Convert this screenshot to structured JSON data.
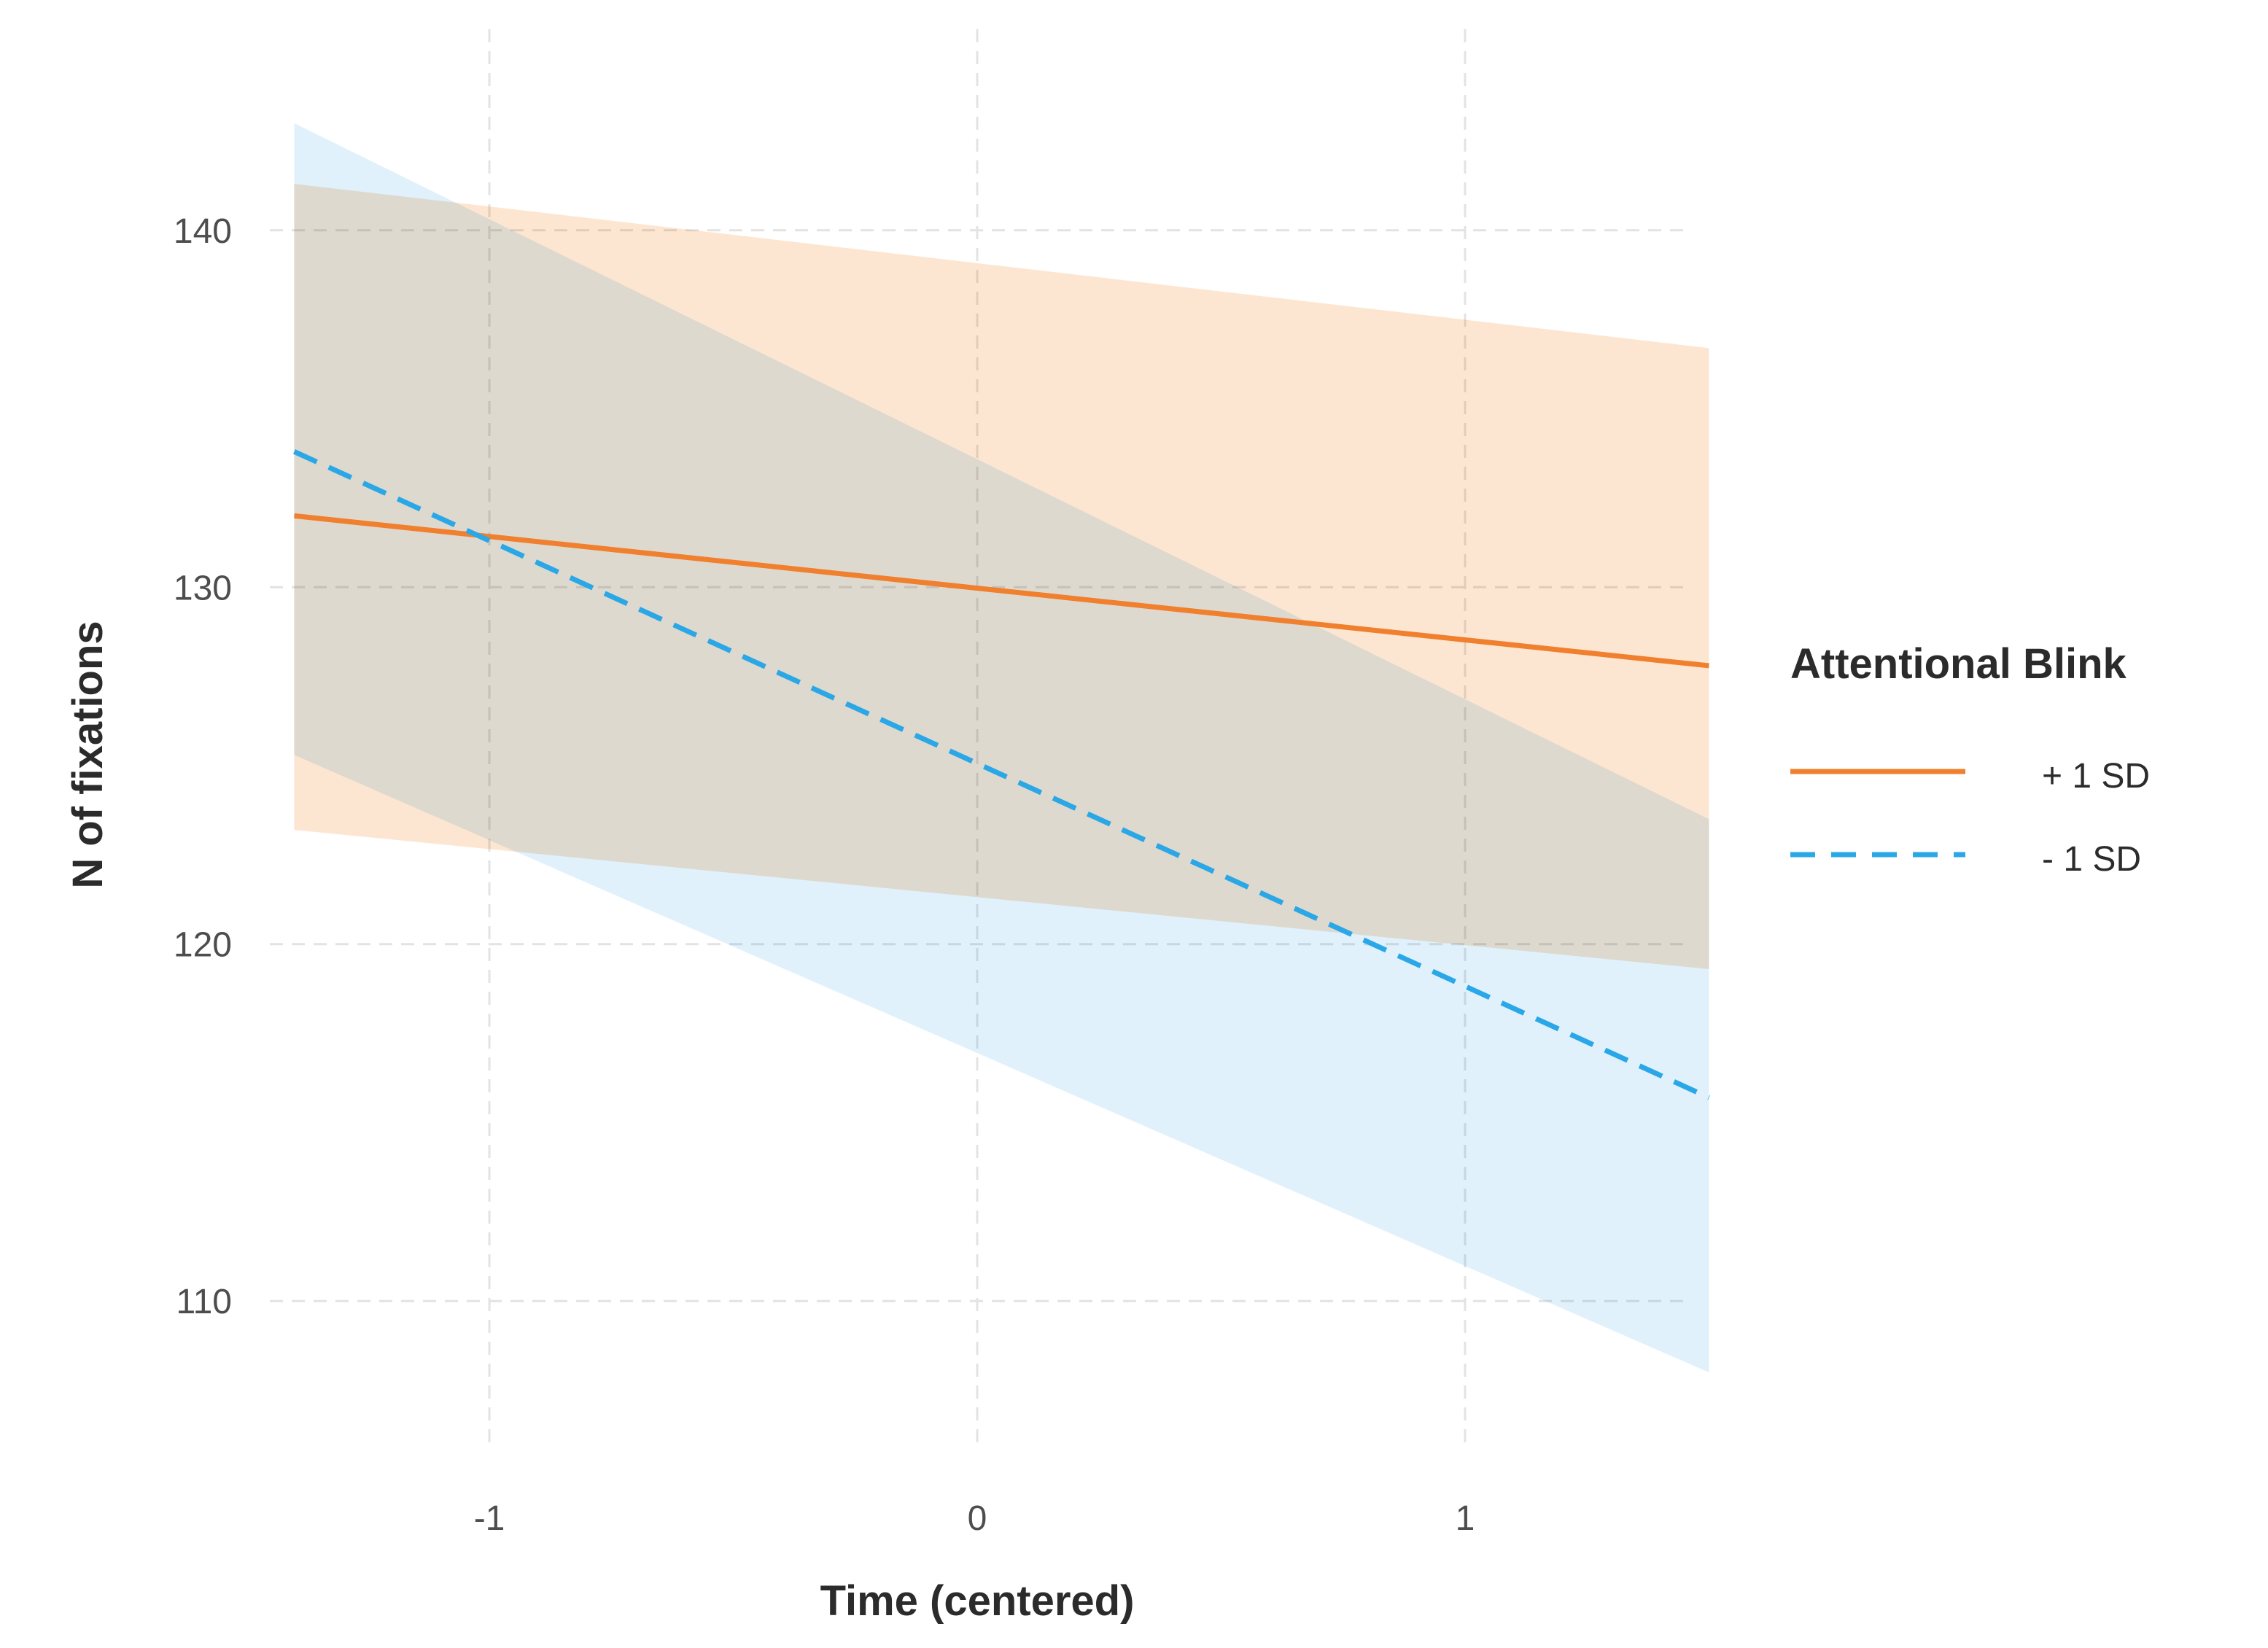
{
  "chart_data": {
    "type": "line",
    "title": "",
    "xlabel": "Time (centered)",
    "ylabel": "N of fixations",
    "xlim": [
      -1.45,
      1.45
    ],
    "ylim": [
      106,
      144
    ],
    "x_ticks": [
      -1,
      0,
      1
    ],
    "x_tick_labels": [
      "-1",
      "0",
      "1"
    ],
    "y_ticks": [
      110,
      120,
      130,
      140
    ],
    "y_tick_labels": [
      "110",
      "120",
      "130",
      "140"
    ],
    "grid": true,
    "legend": {
      "title": "Attentional Blink",
      "placement": "right",
      "entries": [
        "+ 1 SD",
        "- 1 SD"
      ]
    },
    "series": [
      {
        "name": "+ 1 SD",
        "color": "#f07f2e",
        "band_color": "#fde3cc",
        "line_style": "solid",
        "x": [
          -1.4,
          1.5
        ],
        "y": [
          132.0,
          127.8
        ],
        "lower": [
          123.2,
          119.3
        ],
        "upper": [
          141.3,
          136.7
        ]
      },
      {
        "name": "- 1 SD",
        "color": "#2aa7e6",
        "band_color": "#d6ecfb",
        "line_style": "dashed",
        "x": [
          -1.4,
          1.5
        ],
        "y": [
          133.8,
          115.7
        ],
        "lower": [
          125.3,
          108.0
        ],
        "upper": [
          143.0,
          123.5
        ]
      }
    ]
  }
}
